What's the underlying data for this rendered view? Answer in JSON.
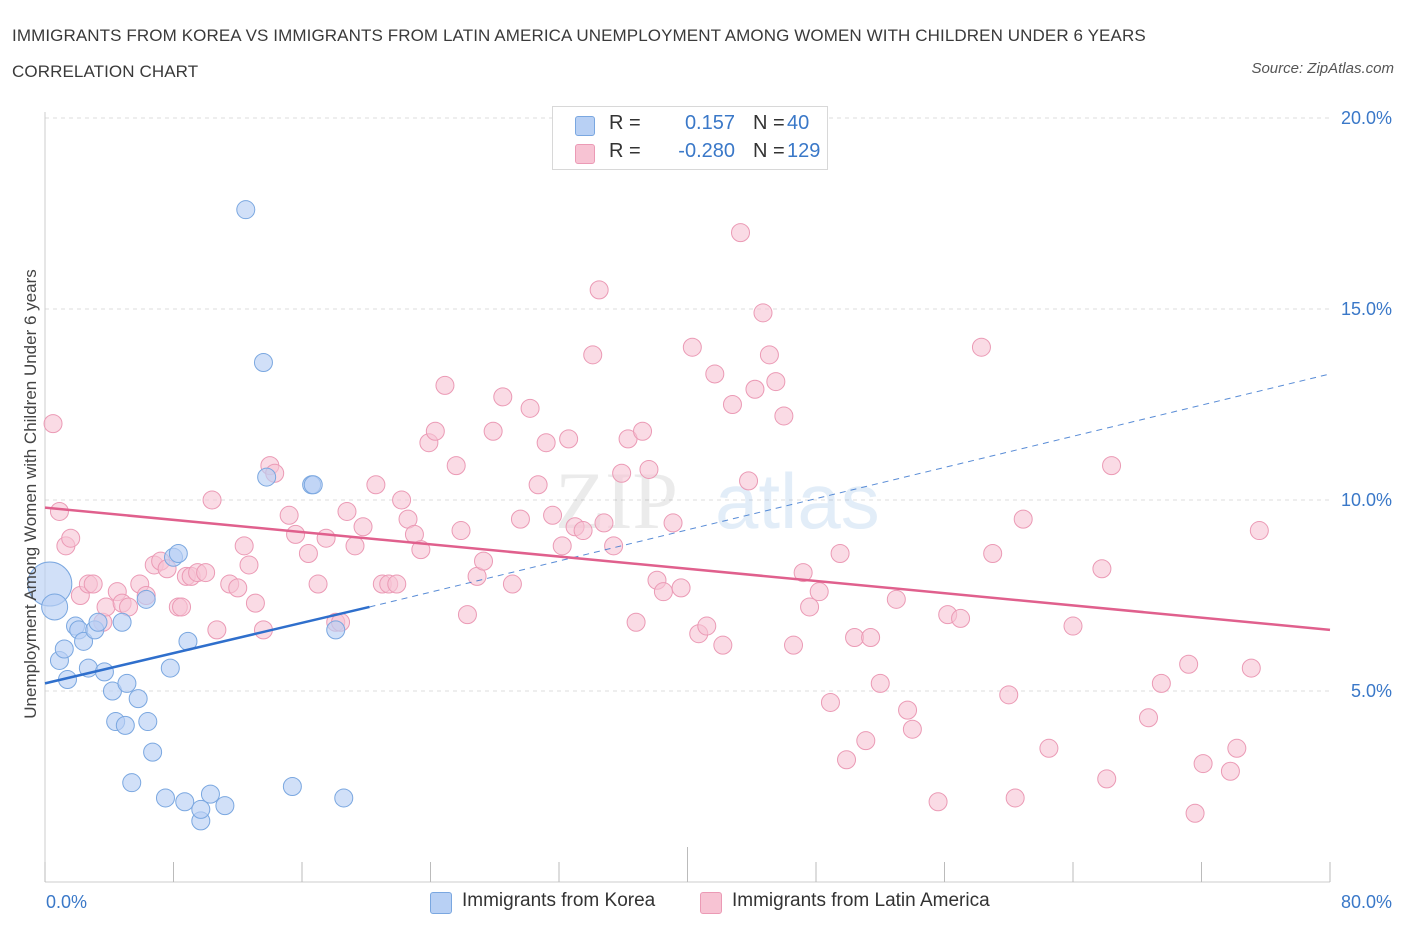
{
  "header": {
    "title": "IMMIGRANTS FROM KOREA VS IMMIGRANTS FROM LATIN AMERICA UNEMPLOYMENT AMONG WOMEN WITH CHILDREN UNDER 6 YEARS CORRELATION CHART",
    "source": "Source: ZipAtlas.com"
  },
  "watermark": {
    "zip": "ZIP",
    "atlas": "atlas"
  },
  "legend": {
    "rows": [
      {
        "r_label": "R =",
        "r_value": "0.157",
        "n_label": "N =",
        "n_value": "40"
      },
      {
        "r_label": "R =",
        "r_value": "-0.280",
        "n_label": "N =",
        "n_value": "129"
      }
    ]
  },
  "colors": {
    "korea_fill": "#b8d0f4",
    "korea_stroke": "#7aa7e0",
    "korea_line": "#2f6fcc",
    "latam_fill": "#f7c3d3",
    "latam_stroke": "#eb9ab5",
    "latam_line": "#e0608d",
    "tick_label": "#3a78c8",
    "grid": "#dddddd"
  },
  "chart_data": {
    "type": "scatter",
    "title": "IMMIGRANTS FROM KOREA VS IMMIGRANTS FROM LATIN AMERICA UNEMPLOYMENT AMONG WOMEN WITH CHILDREN UNDER 6 YEARS CORRELATION CHART",
    "xlabel": "",
    "ylabel": "Unemployment Among Women with Children Under 6 years",
    "xlim": [
      0,
      80
    ],
    "ylim": [
      0,
      20
    ],
    "x_tick_labels": [
      "0.0%",
      "80.0%"
    ],
    "y_ticks": [
      5,
      10,
      15,
      20
    ],
    "y_tick_labels": [
      "5.0%",
      "10.0%",
      "15.0%",
      "20.0%"
    ],
    "grid": true,
    "legend_position": "bottom",
    "series": [
      {
        "name": "Immigrants from Korea",
        "r": 0.157,
        "n": 40,
        "trend": {
          "x0": 0,
          "y0": 5.2,
          "x1": 20.2,
          "y1": 7.2,
          "dashed_to_x": 80,
          "dashed_to_y": 13.3
        },
        "points": [
          [
            0.3,
            7.8,
            22
          ],
          [
            0.6,
            7.2,
            13
          ],
          [
            0.9,
            5.8,
            9
          ],
          [
            1.2,
            6.1,
            9
          ],
          [
            1.4,
            5.3,
            9
          ],
          [
            1.9,
            6.7,
            9
          ],
          [
            2.1,
            6.6,
            9
          ],
          [
            2.4,
            6.3,
            9
          ],
          [
            2.7,
            5.6,
            9
          ],
          [
            3.1,
            6.6,
            9
          ],
          [
            3.3,
            6.8,
            9
          ],
          [
            3.7,
            5.5,
            9
          ],
          [
            4.2,
            5.0,
            9
          ],
          [
            4.4,
            4.2,
            9
          ],
          [
            4.8,
            6.8,
            9
          ],
          [
            5.0,
            4.1,
            9
          ],
          [
            5.1,
            5.2,
            9
          ],
          [
            5.4,
            2.6,
            9
          ],
          [
            5.8,
            4.8,
            9
          ],
          [
            6.3,
            7.4,
            9
          ],
          [
            6.4,
            4.2,
            9
          ],
          [
            6.7,
            3.4,
            9
          ],
          [
            7.5,
            2.2,
            9
          ],
          [
            7.8,
            5.6,
            9
          ],
          [
            8.0,
            8.5,
            9
          ],
          [
            8.3,
            8.6,
            9
          ],
          [
            8.7,
            2.1,
            9
          ],
          [
            8.9,
            6.3,
            9
          ],
          [
            9.7,
            1.6,
            9
          ],
          [
            9.7,
            1.9,
            9
          ],
          [
            10.3,
            2.3,
            9
          ],
          [
            11.2,
            2.0,
            9
          ],
          [
            12.5,
            17.6,
            9
          ],
          [
            13.6,
            13.6,
            9
          ],
          [
            13.8,
            10.6,
            9
          ],
          [
            15.4,
            2.5,
            9
          ],
          [
            16.6,
            10.4,
            9
          ],
          [
            16.7,
            10.4,
            9
          ],
          [
            18.1,
            6.6,
            9
          ],
          [
            18.6,
            2.2,
            9
          ]
        ]
      },
      {
        "name": "Immigrants from Latin America",
        "r": -0.28,
        "n": 129,
        "trend": {
          "x0": 0,
          "y0": 9.8,
          "x1": 80,
          "y1": 6.6
        },
        "points": [
          [
            0.5,
            12.0
          ],
          [
            0.9,
            9.7
          ],
          [
            1.3,
            8.8
          ],
          [
            1.6,
            9.0
          ],
          [
            2.2,
            7.5
          ],
          [
            2.7,
            7.8
          ],
          [
            3.0,
            7.8
          ],
          [
            3.6,
            6.8
          ],
          [
            3.8,
            7.2
          ],
          [
            4.5,
            7.6
          ],
          [
            4.8,
            7.3
          ],
          [
            5.2,
            7.2
          ],
          [
            5.9,
            7.8
          ],
          [
            6.3,
            7.5
          ],
          [
            6.8,
            8.3
          ],
          [
            7.2,
            8.4
          ],
          [
            7.6,
            8.2
          ],
          [
            8.3,
            7.2
          ],
          [
            8.5,
            7.2
          ],
          [
            8.8,
            8.0
          ],
          [
            9.1,
            8.0
          ],
          [
            9.5,
            8.1
          ],
          [
            10.0,
            8.1
          ],
          [
            10.4,
            10.0
          ],
          [
            10.7,
            6.6
          ],
          [
            11.5,
            7.8
          ],
          [
            12.0,
            7.7
          ],
          [
            12.4,
            8.8
          ],
          [
            12.7,
            8.3
          ],
          [
            13.1,
            7.3
          ],
          [
            13.6,
            6.6
          ],
          [
            14.0,
            10.9
          ],
          [
            14.3,
            10.7
          ],
          [
            15.2,
            9.6
          ],
          [
            15.6,
            9.1
          ],
          [
            16.4,
            8.6
          ],
          [
            17.0,
            7.8
          ],
          [
            17.5,
            9.0
          ],
          [
            18.1,
            6.8
          ],
          [
            18.4,
            6.8
          ],
          [
            18.8,
            9.7
          ],
          [
            19.3,
            8.8
          ],
          [
            19.8,
            9.3
          ],
          [
            20.6,
            10.4
          ],
          [
            21.0,
            7.8
          ],
          [
            21.4,
            7.8
          ],
          [
            21.9,
            7.8
          ],
          [
            22.2,
            10.0
          ],
          [
            22.6,
            9.5
          ],
          [
            23.0,
            9.1
          ],
          [
            23.4,
            8.7
          ],
          [
            23.9,
            11.5
          ],
          [
            24.3,
            11.8
          ],
          [
            24.9,
            13.0
          ],
          [
            25.6,
            10.9
          ],
          [
            25.9,
            9.2
          ],
          [
            26.3,
            7.0
          ],
          [
            26.9,
            8.0
          ],
          [
            27.3,
            8.4
          ],
          [
            27.9,
            11.8
          ],
          [
            28.5,
            12.7
          ],
          [
            29.1,
            7.8
          ],
          [
            29.6,
            9.5
          ],
          [
            30.2,
            12.4
          ],
          [
            30.7,
            10.4
          ],
          [
            31.2,
            11.5
          ],
          [
            31.6,
            9.6
          ],
          [
            32.2,
            8.8
          ],
          [
            32.6,
            11.6
          ],
          [
            33.0,
            9.3
          ],
          [
            33.5,
            9.2
          ],
          [
            34.1,
            13.8
          ],
          [
            34.5,
            15.5
          ],
          [
            34.8,
            9.4
          ],
          [
            35.4,
            8.8
          ],
          [
            35.9,
            10.7
          ],
          [
            36.3,
            11.6
          ],
          [
            36.8,
            6.8
          ],
          [
            37.2,
            11.8
          ],
          [
            37.6,
            10.8
          ],
          [
            38.1,
            7.9
          ],
          [
            38.5,
            7.6
          ],
          [
            39.1,
            9.4
          ],
          [
            39.6,
            7.7
          ],
          [
            40.3,
            14.0
          ],
          [
            40.7,
            6.5
          ],
          [
            41.2,
            6.7
          ],
          [
            41.7,
            13.3
          ],
          [
            42.2,
            6.2
          ],
          [
            42.8,
            12.5
          ],
          [
            43.3,
            17.0
          ],
          [
            43.8,
            10.5
          ],
          [
            44.2,
            12.9
          ],
          [
            44.7,
            14.9
          ],
          [
            45.1,
            13.8
          ],
          [
            45.5,
            13.1
          ],
          [
            46.0,
            12.2
          ],
          [
            46.6,
            6.2
          ],
          [
            47.2,
            8.1
          ],
          [
            47.6,
            7.2
          ],
          [
            48.2,
            7.6
          ],
          [
            48.9,
            4.7
          ],
          [
            49.5,
            8.6
          ],
          [
            49.9,
            3.2
          ],
          [
            50.4,
            6.4
          ],
          [
            51.1,
            3.7
          ],
          [
            51.4,
            6.4
          ],
          [
            52.0,
            5.2
          ],
          [
            53.0,
            7.4
          ],
          [
            53.7,
            4.5
          ],
          [
            54.0,
            4.0
          ],
          [
            55.6,
            2.1
          ],
          [
            56.2,
            7.0
          ],
          [
            57.0,
            6.9
          ],
          [
            58.3,
            14.0
          ],
          [
            59.0,
            8.6
          ],
          [
            60.0,
            4.9
          ],
          [
            60.4,
            2.2
          ],
          [
            60.9,
            9.5
          ],
          [
            62.5,
            3.5
          ],
          [
            64.0,
            6.7
          ],
          [
            65.8,
            8.2
          ],
          [
            66.1,
            2.7
          ],
          [
            66.4,
            10.9
          ],
          [
            68.7,
            4.3
          ],
          [
            69.5,
            5.2
          ],
          [
            71.2,
            5.7
          ],
          [
            71.6,
            1.8
          ],
          [
            72.1,
            3.1
          ],
          [
            73.8,
            2.9
          ],
          [
            74.2,
            3.5
          ],
          [
            75.1,
            5.6
          ],
          [
            75.6,
            9.2
          ]
        ]
      }
    ]
  },
  "bottom_legend": [
    "Immigrants from Korea",
    "Immigrants from Latin America"
  ]
}
